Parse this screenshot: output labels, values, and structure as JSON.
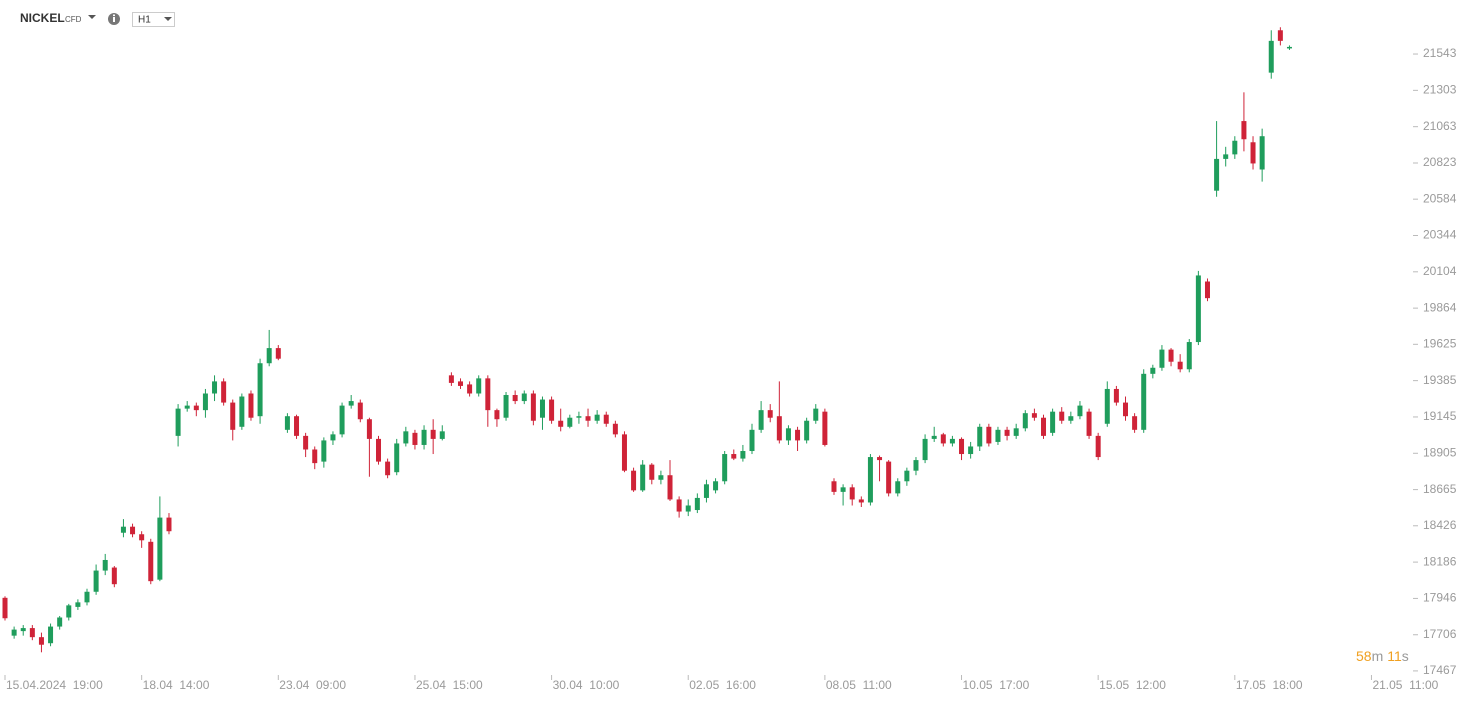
{
  "chart_data": {
    "type": "candlestick",
    "symbol": "NICKEL",
    "instrument_type": "CFD",
    "timeframe": "H1",
    "countdown": {
      "minutes": "58",
      "minutes_unit": "m",
      "seconds": "11",
      "seconds_unit": "s"
    },
    "up_color": "#1f9d5c",
    "down_color": "#cf2338",
    "grid": false,
    "xlim": [
      -0.55,
      159.5
    ],
    "ylim": [
      17440,
      21900
    ],
    "xticks": [
      {
        "value": 0,
        "label": "15.04.2024  19:00"
      },
      {
        "value": 15,
        "label": "18.04  14:00"
      },
      {
        "value": 30,
        "label": "23.04  09:00"
      },
      {
        "value": 45,
        "label": "25.04  15:00"
      },
      {
        "value": 60,
        "label": "30.04  10:00"
      },
      {
        "value": 75,
        "label": "02.05  16:00"
      },
      {
        "value": 90,
        "label": "08.05  11:00"
      },
      {
        "value": 105,
        "label": "10.05  17:00"
      },
      {
        "value": 120,
        "label": "15.05  12:00"
      },
      {
        "value": 135,
        "label": "17.05  18:00"
      },
      {
        "value": 150,
        "label": "21.05  11:00"
      }
    ],
    "yticks": [
      21543,
      21303,
      21063,
      20823,
      20584,
      20344,
      20104,
      19864,
      19625,
      19385,
      19145,
      18905,
      18665,
      18426,
      18186,
      17946,
      17706,
      17467
    ],
    "ohlc": [
      [
        17950,
        17960,
        17800,
        17815
      ],
      [
        17700,
        17760,
        17680,
        17740
      ],
      [
        17730,
        17770,
        17700,
        17750
      ],
      [
        17750,
        17770,
        17670,
        17690
      ],
      [
        17690,
        17720,
        17590,
        17640
      ],
      [
        17650,
        17780,
        17630,
        17760
      ],
      [
        17760,
        17830,
        17740,
        17820
      ],
      [
        17820,
        17910,
        17800,
        17900
      ],
      [
        17890,
        17940,
        17870,
        17920
      ],
      [
        17920,
        18010,
        17900,
        17990
      ],
      [
        17990,
        18170,
        17970,
        18130
      ],
      [
        18130,
        18240,
        18100,
        18200
      ],
      [
        18150,
        18160,
        18020,
        18040
      ],
      [
        18380,
        18470,
        18350,
        18420
      ],
      [
        18420,
        18440,
        18350,
        18370
      ],
      [
        18370,
        18390,
        18280,
        18330
      ],
      [
        18320,
        18340,
        18040,
        18060
      ],
      [
        18070,
        18620,
        18060,
        18480
      ],
      [
        18480,
        18510,
        18370,
        18390
      ],
      [
        19020,
        19230,
        18950,
        19200
      ],
      [
        19200,
        19250,
        19180,
        19220
      ],
      [
        19220,
        19240,
        19150,
        19190
      ],
      [
        19190,
        19330,
        19140,
        19300
      ],
      [
        19300,
        19420,
        19250,
        19380
      ],
      [
        19380,
        19400,
        19220,
        19240
      ],
      [
        19240,
        19260,
        18990,
        19060
      ],
      [
        19080,
        19300,
        19060,
        19280
      ],
      [
        19300,
        19320,
        19120,
        19140
      ],
      [
        19150,
        19530,
        19100,
        19500
      ],
      [
        19500,
        19720,
        19480,
        19600
      ],
      [
        19600,
        19620,
        19520,
        19530
      ],
      [
        19060,
        19170,
        19040,
        19150
      ],
      [
        19150,
        19160,
        19000,
        19020
      ],
      [
        19020,
        19040,
        18880,
        18930
      ],
      [
        18930,
        18950,
        18800,
        18840
      ],
      [
        18850,
        19010,
        18810,
        18990
      ],
      [
        18990,
        19050,
        18960,
        19030
      ],
      [
        19030,
        19240,
        19010,
        19220
      ],
      [
        19220,
        19290,
        19200,
        19250
      ],
      [
        19240,
        19260,
        19110,
        19130
      ],
      [
        19130,
        19140,
        18750,
        19000
      ],
      [
        19000,
        19020,
        18830,
        18850
      ],
      [
        18850,
        18870,
        18740,
        18760
      ],
      [
        18780,
        19000,
        18760,
        18970
      ],
      [
        18970,
        19080,
        18950,
        19050
      ],
      [
        19040,
        19060,
        18930,
        18960
      ],
      [
        18960,
        19090,
        18930,
        19060
      ],
      [
        19060,
        19130,
        18900,
        19000
      ],
      [
        19000,
        19090,
        18990,
        19050
      ],
      [
        19420,
        19440,
        19350,
        19370
      ],
      [
        19380,
        19400,
        19330,
        19350
      ],
      [
        19360,
        19380,
        19280,
        19300
      ],
      [
        19300,
        19420,
        19280,
        19400
      ],
      [
        19400,
        19420,
        19080,
        19190
      ],
      [
        19190,
        19200,
        19080,
        19130
      ],
      [
        19140,
        19310,
        19120,
        19290
      ],
      [
        19290,
        19320,
        19230,
        19250
      ],
      [
        19250,
        19320,
        19230,
        19300
      ],
      [
        19300,
        19320,
        19090,
        19120
      ],
      [
        19140,
        19280,
        19060,
        19260
      ],
      [
        19260,
        19280,
        19100,
        19120
      ],
      [
        19120,
        19200,
        19050,
        19080
      ],
      [
        19080,
        19160,
        19070,
        19140
      ],
      [
        19140,
        19180,
        19100,
        19150
      ],
      [
        19150,
        19200,
        19080,
        19120
      ],
      [
        19120,
        19190,
        19100,
        19160
      ],
      [
        19160,
        19180,
        19080,
        19100
      ],
      [
        19100,
        19120,
        19010,
        19030
      ],
      [
        19030,
        19050,
        18780,
        18790
      ],
      [
        18790,
        18810,
        18650,
        18660
      ],
      [
        18660,
        18860,
        18650,
        18830
      ],
      [
        18830,
        18840,
        18700,
        18730
      ],
      [
        18730,
        18790,
        18700,
        18760
      ],
      [
        18760,
        18860,
        18590,
        18600
      ],
      [
        18600,
        18620,
        18480,
        18520
      ],
      [
        18520,
        18600,
        18490,
        18560
      ],
      [
        18530,
        18640,
        18510,
        18610
      ],
      [
        18610,
        18730,
        18580,
        18700
      ],
      [
        18660,
        18740,
        18640,
        18720
      ],
      [
        18720,
        18920,
        18700,
        18900
      ],
      [
        18900,
        18930,
        18860,
        18870
      ],
      [
        18870,
        18960,
        18850,
        18920
      ],
      [
        18920,
        19100,
        18900,
        19060
      ],
      [
        19060,
        19250,
        19040,
        19190
      ],
      [
        19190,
        19230,
        19110,
        19140
      ],
      [
        19150,
        19380,
        18970,
        18990
      ],
      [
        18990,
        19090,
        18960,
        19070
      ],
      [
        19060,
        19080,
        18920,
        18990
      ],
      [
        18990,
        19140,
        18970,
        19120
      ],
      [
        19120,
        19230,
        19100,
        19200
      ],
      [
        19180,
        19200,
        18950,
        18960
      ],
      [
        18720,
        18740,
        18630,
        18650
      ],
      [
        18650,
        18700,
        18560,
        18680
      ],
      [
        18680,
        18700,
        18560,
        18600
      ],
      [
        18600,
        18620,
        18550,
        18580
      ],
      [
        18580,
        18900,
        18560,
        18880
      ],
      [
        18880,
        18890,
        18720,
        18860
      ],
      [
        18850,
        18860,
        18620,
        18640
      ],
      [
        18640,
        18740,
        18620,
        18720
      ],
      [
        18720,
        18810,
        18690,
        18790
      ],
      [
        18790,
        18880,
        18760,
        18860
      ],
      [
        18860,
        19030,
        18840,
        19000
      ],
      [
        19000,
        19080,
        18980,
        19020
      ],
      [
        19030,
        19040,
        18950,
        18970
      ],
      [
        18970,
        19020,
        18950,
        19000
      ],
      [
        19000,
        19010,
        18860,
        18900
      ],
      [
        18900,
        18980,
        18870,
        18950
      ],
      [
        18950,
        19100,
        18920,
        19080
      ],
      [
        19080,
        19100,
        18950,
        18970
      ],
      [
        18980,
        19080,
        18960,
        19060
      ],
      [
        19060,
        19080,
        18990,
        19020
      ],
      [
        19020,
        19100,
        19000,
        19070
      ],
      [
        19070,
        19190,
        19050,
        19170
      ],
      [
        19170,
        19200,
        19120,
        19140
      ],
      [
        19140,
        19160,
        19000,
        19020
      ],
      [
        19040,
        19200,
        19020,
        19180
      ],
      [
        19180,
        19210,
        19100,
        19120
      ],
      [
        19120,
        19180,
        19100,
        19150
      ],
      [
        19150,
        19250,
        19130,
        19220
      ],
      [
        19180,
        19200,
        19000,
        19020
      ],
      [
        19020,
        19040,
        18860,
        18880
      ],
      [
        19100,
        19380,
        19080,
        19330
      ],
      [
        19330,
        19350,
        19220,
        19240
      ],
      [
        19240,
        19280,
        19120,
        19150
      ],
      [
        19150,
        19170,
        19040,
        19060
      ],
      [
        19060,
        19460,
        19040,
        19430
      ],
      [
        19430,
        19490,
        19400,
        19470
      ],
      [
        19470,
        19620,
        19450,
        19590
      ],
      [
        19590,
        19600,
        19480,
        19510
      ],
      [
        19510,
        19560,
        19440,
        19460
      ],
      [
        19460,
        19660,
        19440,
        19640
      ],
      [
        19640,
        20110,
        19620,
        20080
      ],
      [
        20040,
        20060,
        19910,
        19930
      ],
      [
        20640,
        21100,
        20600,
        20850
      ],
      [
        20850,
        20930,
        20800,
        20880
      ],
      [
        20880,
        21000,
        20850,
        20970
      ],
      [
        21100,
        21290,
        20900,
        20980
      ],
      [
        20960,
        21000,
        20780,
        20820
      ],
      [
        20780,
        21050,
        20700,
        21000
      ],
      [
        21420,
        21700,
        21380,
        21630
      ],
      [
        21700,
        21720,
        21600,
        21630
      ],
      [
        21580,
        21600,
        21570,
        21590
      ]
    ]
  }
}
